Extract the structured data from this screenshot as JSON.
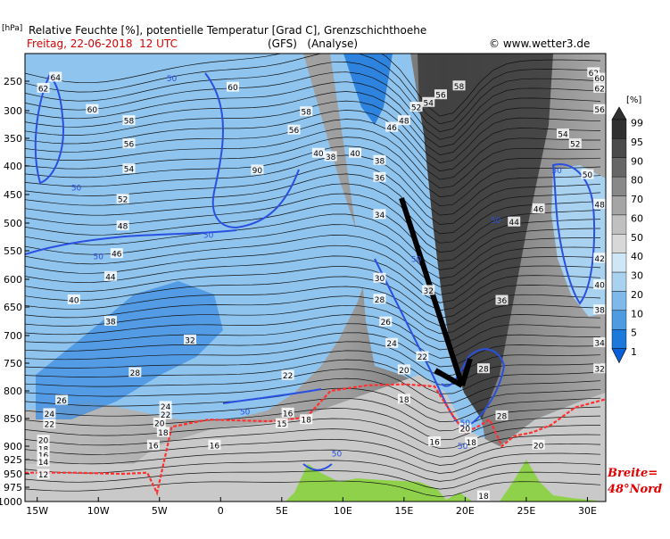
{
  "header": {
    "line1": "Relative Feuchte [%], potentielle Temperatur [Grad C], Grenzschichthoehe",
    "line2_date": "Freitag, 22-06-2018  12 UTC",
    "line2_model": "(GFS)   (Analyse)",
    "copyright": "© www.wetter3.de"
  },
  "axis_unit_left": "[hPa]",
  "legend_unit": "[%]",
  "annotation": {
    "line1": "Breite=",
    "line2": "48°Nord"
  },
  "chart_data": {
    "type": "heatmap",
    "title": "Relative Feuchte [%], potentielle Temperatur [Grad C], Grenzschichthoehe",
    "ylabel": "[hPa]",
    "xlabel": "",
    "x_ticks": [
      "15W",
      "10W",
      "5W",
      "0",
      "5E",
      "10E",
      "15E",
      "20E",
      "25E",
      "30E"
    ],
    "x_tick_values": [
      -15,
      -10,
      -5,
      0,
      5,
      10,
      15,
      20,
      25,
      30
    ],
    "y_ticks": [
      250,
      300,
      350,
      400,
      450,
      500,
      550,
      600,
      650,
      700,
      750,
      800,
      850,
      900,
      925,
      950,
      975,
      1000
    ],
    "xlim": [
      -16,
      31.5
    ],
    "ylim": [
      1000,
      195
    ],
    "colorbar": {
      "label": "[%]",
      "levels": [
        "99",
        "95",
        "90",
        "80",
        "70",
        "60",
        "50",
        "40",
        "30",
        "20",
        "10",
        "5",
        "1"
      ],
      "colors": [
        "#303030",
        "#4a4a4a",
        "#666666",
        "#888888",
        "#a5a5a5",
        "#c0c0c0",
        "#d8d8d8",
        "#cfe6f7",
        "#a9d2f0",
        "#7fb8ea",
        "#4f9be2",
        "#1d78dc",
        "#0a5fd8"
      ]
    },
    "series": [
      {
        "name": "theta_labels",
        "points": [
          {
            "x": -14.5,
            "p": 262,
            "v": "62"
          },
          {
            "x": -13.5,
            "p": 242,
            "v": "64"
          },
          {
            "x": -10.5,
            "p": 298,
            "v": "60"
          },
          {
            "x": -7.5,
            "p": 318,
            "v": "58"
          },
          {
            "x": -7.5,
            "p": 360,
            "v": "56"
          },
          {
            "x": -7.5,
            "p": 405,
            "v": "54"
          },
          {
            "x": -8,
            "p": 458,
            "v": "52"
          },
          {
            "x": -8,
            "p": 505,
            "v": "48"
          },
          {
            "x": -8.5,
            "p": 555,
            "v": "46"
          },
          {
            "x": -9,
            "p": 595,
            "v": "44"
          },
          {
            "x": -12,
            "p": 637,
            "v": "40"
          },
          {
            "x": -9,
            "p": 675,
            "v": "38"
          },
          {
            "x": -2.5,
            "p": 708,
            "v": "32"
          },
          {
            "x": -7,
            "p": 767,
            "v": "28"
          },
          {
            "x": -13,
            "p": 817,
            "v": "26"
          },
          {
            "x": -14,
            "p": 841,
            "v": "24"
          },
          {
            "x": -14,
            "p": 860,
            "v": "22"
          },
          {
            "x": -14.5,
            "p": 889,
            "v": "20"
          },
          {
            "x": -14.5,
            "p": 905,
            "v": "18"
          },
          {
            "x": -14.5,
            "p": 917,
            "v": "16"
          },
          {
            "x": -14.5,
            "p": 929,
            "v": "14"
          },
          {
            "x": -14.5,
            "p": 951,
            "v": "12"
          },
          {
            "x": -5.5,
            "p": 898,
            "v": "16"
          },
          {
            "x": -4.5,
            "p": 828,
            "v": "24"
          },
          {
            "x": -4.5,
            "p": 843,
            "v": "22"
          },
          {
            "x": -5,
            "p": 858,
            "v": "20"
          },
          {
            "x": -4.7,
            "p": 875,
            "v": "18"
          },
          {
            "x": -0.5,
            "p": 898,
            "v": "16"
          },
          {
            "x": 1,
            "p": 260,
            "v": "60"
          },
          {
            "x": 3,
            "p": 407,
            "v": "90"
          },
          {
            "x": 7,
            "p": 302,
            "v": "58"
          },
          {
            "x": 6,
            "p": 335,
            "v": "56"
          },
          {
            "x": 5.5,
            "p": 772,
            "v": "22"
          },
          {
            "x": 5.5,
            "p": 840,
            "v": "16"
          },
          {
            "x": 5,
            "p": 859,
            "v": "15"
          },
          {
            "x": 7,
            "p": 852,
            "v": "18"
          },
          {
            "x": 9,
            "p": 383,
            "v": "38"
          },
          {
            "x": 8,
            "p": 377,
            "v": "40"
          },
          {
            "x": 13,
            "p": 420,
            "v": "36"
          },
          {
            "x": 13,
            "p": 390,
            "v": "38"
          },
          {
            "x": 11,
            "p": 377,
            "v": "40"
          },
          {
            "x": 13,
            "p": 485,
            "v": "34"
          },
          {
            "x": 13,
            "p": 598,
            "v": "30"
          },
          {
            "x": 13,
            "p": 636,
            "v": "28"
          },
          {
            "x": 13.5,
            "p": 676,
            "v": "26"
          },
          {
            "x": 14,
            "p": 714,
            "v": "24"
          },
          {
            "x": 15,
            "p": 762,
            "v": "20"
          },
          {
            "x": 15,
            "p": 815,
            "v": "18"
          },
          {
            "x": 16.5,
            "p": 738,
            "v": "22"
          },
          {
            "x": 17,
            "p": 620,
            "v": "32"
          },
          {
            "x": 17.5,
            "p": 892,
            "v": "16"
          },
          {
            "x": 15,
            "p": 318,
            "v": "48"
          },
          {
            "x": 14,
            "p": 330,
            "v": "46"
          },
          {
            "x": 16,
            "p": 294,
            "v": "52"
          },
          {
            "x": 17,
            "p": 286,
            "v": "54"
          },
          {
            "x": 18,
            "p": 273,
            "v": "56"
          },
          {
            "x": 19.5,
            "p": 258,
            "v": "58"
          },
          {
            "x": 20,
            "p": 868,
            "v": "20"
          },
          {
            "x": 21.5,
            "p": 760,
            "v": "28"
          },
          {
            "x": 23,
            "p": 845,
            "v": "28"
          },
          {
            "x": 20.5,
            "p": 893,
            "v": "18"
          },
          {
            "x": 23,
            "p": 638,
            "v": "36"
          },
          {
            "x": 24,
            "p": 498,
            "v": "44"
          },
          {
            "x": 26,
            "p": 475,
            "v": "46"
          },
          {
            "x": 26,
            "p": 898,
            "v": "20"
          },
          {
            "x": 28,
            "p": 342,
            "v": "54"
          },
          {
            "x": 29,
            "p": 360,
            "v": "52"
          },
          {
            "x": 31,
            "p": 262,
            "v": "62"
          },
          {
            "x": 31,
            "p": 298,
            "v": "56"
          },
          {
            "x": 30,
            "p": 415,
            "v": "50"
          },
          {
            "x": 31,
            "p": 467,
            "v": "48"
          },
          {
            "x": 31,
            "p": 563,
            "v": "42"
          },
          {
            "x": 31,
            "p": 610,
            "v": "40"
          },
          {
            "x": 31,
            "p": 655,
            "v": "38"
          },
          {
            "x": 31,
            "p": 713,
            "v": "34"
          },
          {
            "x": 31,
            "p": 760,
            "v": "32"
          },
          {
            "x": 30.5,
            "p": 233,
            "v": "62"
          },
          {
            "x": 31,
            "p": 244,
            "v": "60"
          },
          {
            "x": 21.5,
            "p": 990,
            "v": "18"
          }
        ]
      },
      {
        "name": "rh_50_labels",
        "points": [
          {
            "x": -11.8,
            "p": 438,
            "v": "50"
          },
          {
            "x": -4,
            "p": 245,
            "v": "50"
          },
          {
            "x": -10,
            "p": 560,
            "v": "50"
          },
          {
            "x": -1,
            "p": 522,
            "v": "50"
          },
          {
            "x": 2,
            "p": 838,
            "v": "50"
          },
          {
            "x": 9.5,
            "p": 914,
            "v": "50"
          },
          {
            "x": 16,
            "p": 565,
            "v": "50"
          },
          {
            "x": 22.5,
            "p": 495,
            "v": "50"
          },
          {
            "x": 27.5,
            "p": 408,
            "v": "50"
          },
          {
            "x": 20,
            "p": 858,
            "v": "50"
          },
          {
            "x": 19.8,
            "p": 900,
            "v": "50"
          }
        ]
      }
    ],
    "lines": [
      {
        "name": "boundary_layer_height",
        "color": "#ff2020",
        "points": [
          [
            -16,
            948
          ],
          [
            -12,
            948
          ],
          [
            -8,
            950
          ],
          [
            -6,
            948
          ],
          [
            -5.2,
            985
          ],
          [
            -4,
            865
          ],
          [
            -1,
            852
          ],
          [
            4,
            855
          ],
          [
            7,
            848
          ],
          [
            9,
            800
          ],
          [
            12,
            790
          ],
          [
            15,
            788
          ],
          [
            17.5,
            792
          ],
          [
            19,
            845
          ],
          [
            20,
            875
          ],
          [
            21,
            865
          ],
          [
            22,
            852
          ],
          [
            23,
            900
          ],
          [
            24,
            882
          ],
          [
            25.5,
            875
          ],
          [
            27,
            862
          ],
          [
            29,
            830
          ],
          [
            31.5,
            815
          ]
        ]
      }
    ]
  }
}
